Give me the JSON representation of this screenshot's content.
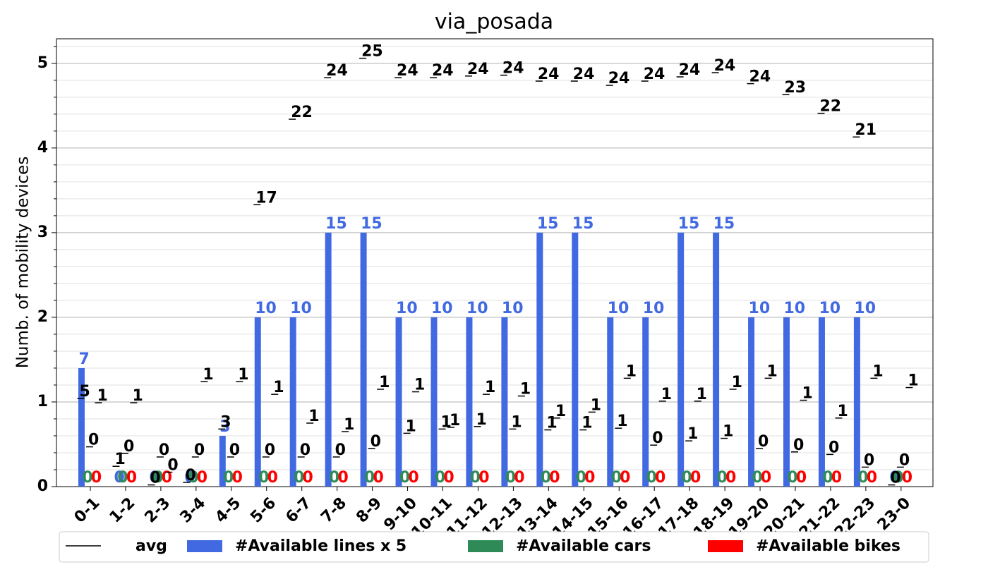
{
  "chart_data": {
    "type": "bar",
    "title": "via_posada",
    "ylabel": "Numb. of mobility devices",
    "categories": [
      "0-1",
      "1-2",
      "2-3",
      "3-4",
      "4-5",
      "5-6",
      "6-7",
      "7-8",
      "8-9",
      "9-10",
      "10-11",
      "11-12",
      "12-13",
      "13-14",
      "14-15",
      "15-16",
      "16-17",
      "17-18",
      "18-19",
      "19-20",
      "20-21",
      "21-22",
      "22-23",
      "23-0"
    ],
    "series": [
      {
        "name": "#Available lines x 5",
        "color": "#4169e1",
        "values": [
          1.4,
          0,
          0,
          0,
          0.6,
          2,
          2,
          3,
          3,
          2,
          2,
          2,
          2,
          3,
          3,
          2,
          2,
          3,
          3,
          2,
          2,
          2,
          2,
          0
        ],
        "value_labels": [
          "7",
          "0",
          "0",
          "0",
          "3",
          "10",
          "10",
          "15",
          "15",
          "10",
          "10",
          "10",
          "10",
          "15",
          "15",
          "10",
          "10",
          "15",
          "15",
          "10",
          "10",
          "10",
          "10",
          "0"
        ]
      },
      {
        "name": "#Available cars",
        "color": "#2e8b57",
        "values": [
          0,
          0,
          0,
          0,
          0,
          0,
          0,
          0,
          0,
          0,
          0,
          0,
          0,
          0,
          0,
          0,
          0,
          0,
          0,
          0,
          0,
          0,
          0,
          0
        ]
      },
      {
        "name": "#Available bikes",
        "color": "#ff0000",
        "values": [
          0,
          0,
          0,
          0,
          0,
          0,
          0,
          0,
          0,
          0,
          0,
          0,
          0,
          0,
          0,
          0,
          0,
          0,
          0,
          0,
          0,
          0,
          0,
          0
        ]
      }
    ],
    "avg": {
      "name": "avg",
      "color": "#000000",
      "series": [
        {
          "values": [
            1.04,
            0.24,
            0.02,
            0.05,
            0.68,
            3.33,
            4.34,
            4.83,
            5.06,
            4.83,
            4.83,
            4.85,
            4.86,
            4.79,
            4.79,
            4.74,
            4.79,
            4.84,
            4.89,
            4.76,
            4.63,
            4.41,
            4.13,
            0.02
          ],
          "value_labels": [
            "5",
            "1",
            "0",
            "0",
            "3",
            "17",
            "22",
            "24",
            "25",
            "24",
            "24",
            "24",
            "24",
            "24",
            "24",
            "24",
            "24",
            "24",
            "24",
            "24",
            "23",
            "22",
            "21",
            "0"
          ]
        },
        {
          "values": [
            0.47,
            0.39,
            0.35,
            0.35,
            0.35,
            0.35,
            0.35,
            0.35,
            0.45,
            0.63,
            0.68,
            0.71,
            0.68,
            0.67,
            0.67,
            0.69,
            0.49,
            0.54,
            0.57,
            0.45,
            0.41,
            0.38,
            0.23,
            0.23
          ],
          "value_labels": [
            "0",
            "0",
            "0",
            "0",
            "0",
            "0",
            "0",
            "0",
            "0",
            "1",
            "1",
            "1",
            "1",
            "1",
            "1",
            "1",
            "0",
            "1",
            "1",
            "0",
            "0",
            "0",
            "0",
            "0"
          ]
        },
        {
          "values": [
            0.99,
            0.99,
            0.17,
            1.24,
            1.24,
            1.09,
            0.75,
            0.65,
            1.15,
            1.12,
            0.7,
            1.09,
            1.07,
            0.81,
            0.88,
            1.28,
            1.01,
            1.01,
            1.15,
            1.28,
            1.02,
            0.81,
            1.28,
            1.17
          ],
          "value_labels": [
            "1",
            "1",
            "0",
            "1",
            "1",
            "1",
            "1",
            "1",
            "1",
            "1",
            "1",
            "1",
            "1",
            "1",
            "1",
            "1",
            "1",
            "1",
            "1",
            "1",
            "1",
            "1",
            "1",
            "1"
          ]
        }
      ]
    },
    "ylim": [
      0,
      5.29
    ],
    "yticks": [
      0,
      1,
      2,
      3,
      4,
      5
    ],
    "minor_yticks": [
      0.2,
      0.4,
      0.6,
      0.8,
      1.2,
      1.4,
      1.6,
      1.8,
      2.2,
      2.4,
      2.6,
      2.8,
      3.2,
      3.4,
      3.6,
      3.8,
      4.2,
      4.4,
      4.6,
      4.8,
      5.2
    ],
    "grid": true,
    "legend": "bottom"
  }
}
